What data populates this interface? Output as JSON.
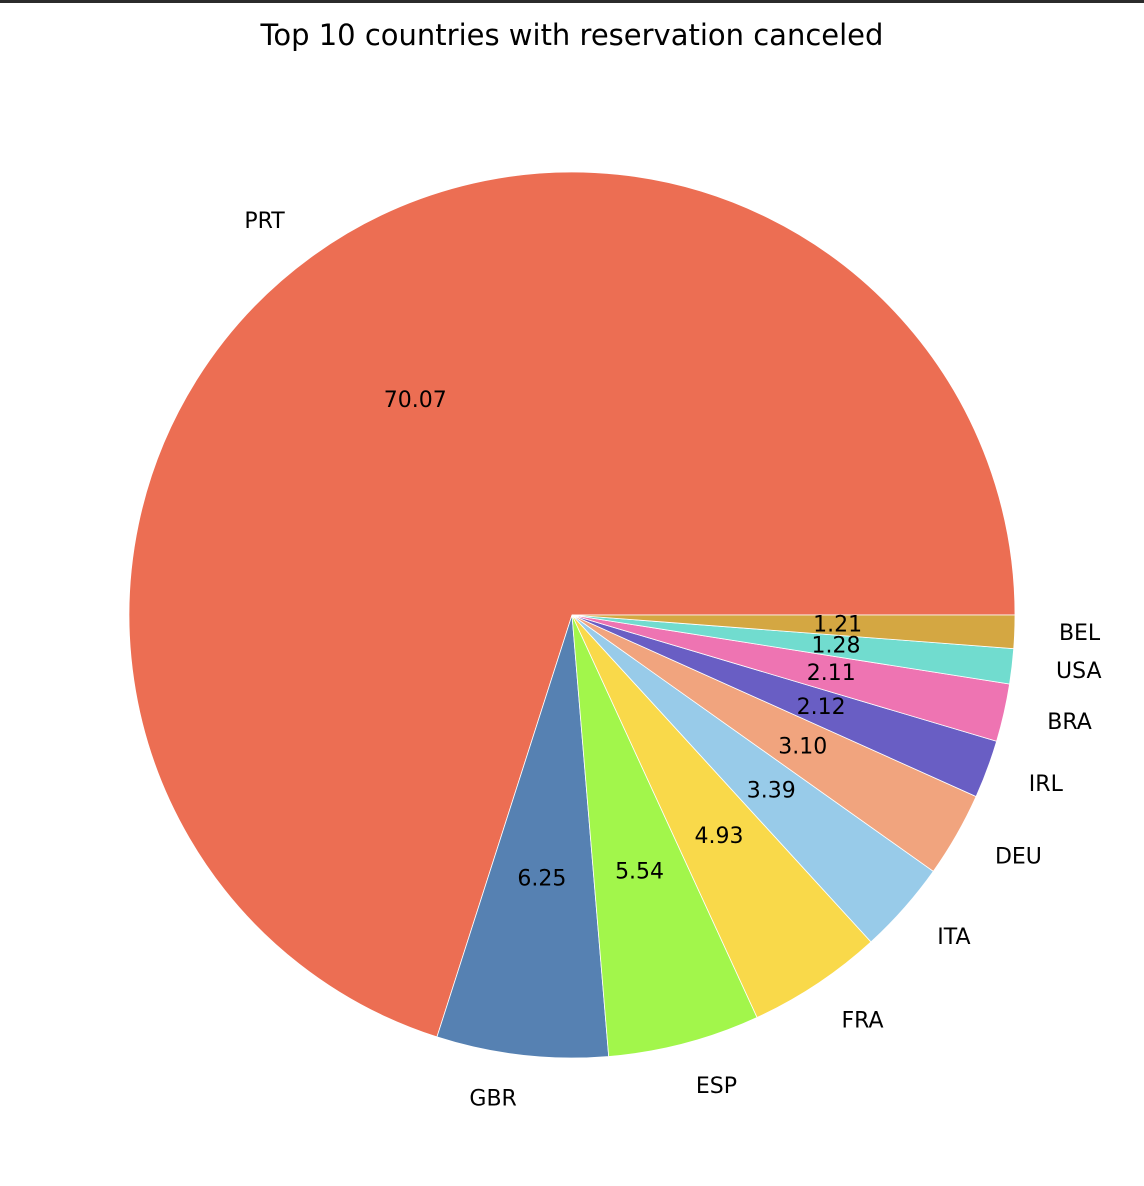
{
  "chart_data": {
    "type": "pie",
    "title": "Top 10 countries with reservation canceled",
    "start_angle_deg": 0,
    "direction": "counterclockwise",
    "slices": [
      {
        "label": "PRT",
        "value": 70.07,
        "pct_text": "70.07",
        "color": "#ec6e53"
      },
      {
        "label": "GBR",
        "value": 6.25,
        "pct_text": "6.25",
        "color": "#5681b2"
      },
      {
        "label": "ESP",
        "value": 5.54,
        "pct_text": "5.54",
        "color": "#a2f64b"
      },
      {
        "label": "FRA",
        "value": 4.93,
        "pct_text": "4.93",
        "color": "#f9d94a"
      },
      {
        "label": "ITA",
        "value": 3.39,
        "pct_text": "3.39",
        "color": "#98cbe9"
      },
      {
        "label": "DEU",
        "value": 3.1,
        "pct_text": "3.10",
        "color": "#f1a47e"
      },
      {
        "label": "IRL",
        "value": 2.12,
        "pct_text": "2.12",
        "color": "#695ec4"
      },
      {
        "label": "BRA",
        "value": 2.11,
        "pct_text": "2.11",
        "color": "#ee74b2"
      },
      {
        "label": "USA",
        "value": 1.28,
        "pct_text": "1.28",
        "color": "#71dccf"
      },
      {
        "label": "BEL",
        "value": 1.21,
        "pct_text": "1.21",
        "color": "#d4a742"
      }
    ]
  }
}
